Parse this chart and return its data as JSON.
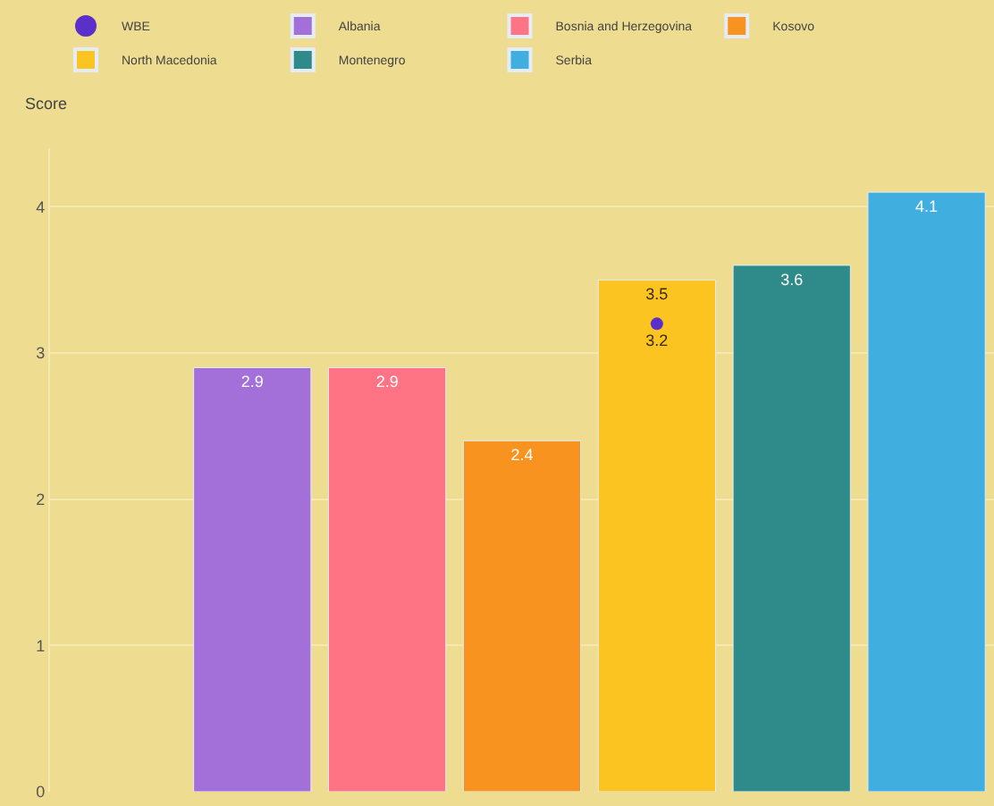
{
  "chart_data": {
    "type": "bar",
    "ylabel": "Score",
    "categories": [
      null,
      null,
      null,
      null,
      null,
      null,
      null
    ],
    "series": [
      {
        "name": "WBE",
        "type": "scatter",
        "color": "#5b2fc9",
        "values": [
          null,
          null,
          null,
          null,
          3.2,
          null,
          null
        ]
      },
      {
        "name": "Albania",
        "color": "#a36fd8",
        "values": [
          null,
          2.9,
          null,
          null,
          null,
          null,
          null
        ]
      },
      {
        "name": "Bosnia and Herzegovina",
        "color": "#ff7484",
        "values": [
          null,
          null,
          2.9,
          null,
          null,
          null,
          null
        ]
      },
      {
        "name": "Kosovo",
        "color": "#f7931e",
        "values": [
          null,
          null,
          null,
          2.4,
          null,
          null,
          null
        ]
      },
      {
        "name": "North Macedonia",
        "color": "#fcc420",
        "values": [
          null,
          null,
          null,
          null,
          3.5,
          null,
          null
        ]
      },
      {
        "name": "Montenegro",
        "color": "#2e8b89",
        "values": [
          null,
          null,
          null,
          null,
          null,
          3.6,
          null
        ]
      },
      {
        "name": "Serbia",
        "color": "#41aee0",
        "values": [
          null,
          null,
          null,
          null,
          null,
          null,
          4.1
        ]
      }
    ],
    "ylim": [
      0,
      4.4
    ],
    "yticks": [
      0,
      1,
      2,
      3,
      4
    ],
    "grid": "y",
    "legend": "top",
    "data_labels": true,
    "marker": "circle"
  }
}
